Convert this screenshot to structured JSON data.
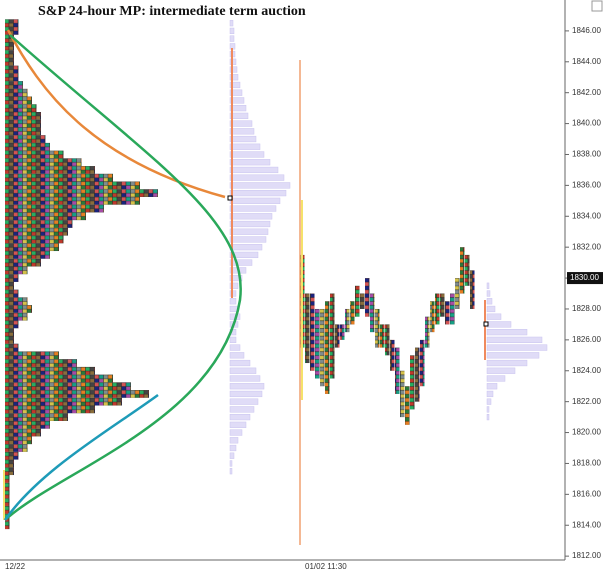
{
  "chart_data": {
    "type": "market-profile",
    "title": "S&P 24-hour MP: intermediate term auction",
    "ylim": [
      1811.75,
      1848
    ],
    "yticks": [
      {
        "value": 1812,
        "label": "1812.00"
      },
      {
        "value": 1814,
        "label": "1814.00"
      },
      {
        "value": 1816,
        "label": "1816.00"
      },
      {
        "value": 1818,
        "label": "1818.00"
      },
      {
        "value": 1820,
        "label": "1820.00"
      },
      {
        "value": 1822,
        "label": "1822.00"
      },
      {
        "value": 1824,
        "label": "1824.00"
      },
      {
        "value": 1826,
        "label": "1826.00"
      },
      {
        "value": 1828,
        "label": "1828.00"
      },
      {
        "value": 1830,
        "label": "1830.00"
      },
      {
        "value": 1832,
        "label": "1832.00"
      },
      {
        "value": 1834,
        "label": "1834.00"
      },
      {
        "value": 1836,
        "label": "1836.00"
      },
      {
        "value": 1838,
        "label": "1838.00"
      },
      {
        "value": 1840,
        "label": "1840.00"
      },
      {
        "value": 1842,
        "label": "1842.00"
      },
      {
        "value": 1844,
        "label": "1844.00"
      },
      {
        "value": 1846,
        "label": "1846.00"
      }
    ],
    "x_labels": [
      "12/22",
      "01/02 11:30"
    ],
    "last_price": {
      "value": 1830,
      "label": "1830.00"
    },
    "prices": [
      1846.5,
      1846,
      1845.5,
      1845,
      1844.5,
      1844,
      1843.5,
      1843,
      1842.5,
      1842,
      1841.5,
      1841,
      1840.5,
      1840,
      1839.5,
      1839,
      1838.5,
      1838,
      1837.5,
      1837,
      1836.5,
      1836,
      1835.5,
      1835,
      1834.5,
      1834,
      1833.5,
      1833,
      1832.5,
      1832,
      1831.5,
      1831,
      1830.5,
      1830,
      1829.5,
      1829,
      1828.5,
      1828,
      1827.5,
      1827,
      1826.5,
      1826,
      1825.5,
      1825,
      1824.5,
      1824,
      1823.5,
      1823,
      1822.5,
      1822,
      1821.5,
      1821,
      1820.5,
      1820,
      1819.5,
      1819,
      1818.5,
      1818,
      1817.5,
      1817,
      1816.5,
      1816,
      1815.5,
      1815,
      1814.5,
      1814
    ],
    "tpo_counts": [
      3,
      3,
      2,
      2,
      2,
      2,
      3,
      3,
      4,
      5,
      6,
      7,
      8,
      8,
      8,
      9,
      10,
      13,
      17,
      20,
      24,
      30,
      34,
      30,
      22,
      18,
      15,
      14,
      13,
      12,
      10,
      8,
      5,
      3,
      2,
      3,
      5,
      6,
      5,
      3,
      2,
      2,
      3,
      12,
      16,
      20,
      24,
      28,
      32,
      26,
      20,
      14,
      10,
      8,
      6,
      5,
      3,
      2,
      2,
      1,
      1,
      1,
      1,
      1,
      1,
      1
    ],
    "volume": [
      3,
      4,
      4,
      5,
      5,
      6,
      7,
      8,
      10,
      12,
      14,
      16,
      18,
      22,
      24,
      26,
      30,
      34,
      40,
      48,
      54,
      60,
      56,
      50,
      46,
      42,
      40,
      38,
      36,
      32,
      28,
      22,
      16,
      12,
      8,
      6,
      6,
      8,
      10,
      8,
      6,
      6,
      10,
      14,
      20,
      26,
      30,
      34,
      32,
      28,
      24,
      20,
      16,
      12,
      8,
      6,
      4,
      2,
      2,
      0,
      0,
      0,
      0,
      0,
      0,
      0
    ],
    "session_prices": [
      1829.5,
      1829,
      1828.5,
      1828,
      1827.5,
      1827,
      1826.5,
      1826,
      1825.5,
      1825,
      1824.5,
      1824,
      1823.5,
      1823,
      1822.5,
      1822,
      1821.5,
      1821
    ],
    "session_volume": [
      2,
      3,
      5,
      8,
      14,
      24,
      40,
      55,
      60,
      52,
      40,
      28,
      18,
      10,
      6,
      4,
      2,
      2
    ],
    "columns_high": [
      1831.5,
      1829,
      1829,
      1828,
      1828,
      1828.5,
      1829,
      1827,
      1827,
      1828,
      1828.5,
      1829.5,
      1829,
      1830,
      1829,
      1828,
      1827,
      1827,
      1826,
      1825.5,
      1824,
      1823,
      1825,
      1825.5,
      1826,
      1827.5,
      1828.5,
      1829,
      1829,
      1828.5,
      1829,
      1830,
      1832,
      1831.5,
      1830.5
    ],
    "columns_low": [
      1825.5,
      1824.5,
      1824,
      1823.5,
      1823,
      1822.5,
      1823.5,
      1825.5,
      1826,
      1826.5,
      1827,
      1827.5,
      1828,
      1827.5,
      1826.5,
      1825.5,
      1825.5,
      1825,
      1824,
      1822.5,
      1821,
      1820.5,
      1821.5,
      1822,
      1823,
      1825.5,
      1826.5,
      1827,
      1827.5,
      1827,
      1827,
      1828,
      1829,
      1829.5,
      1828
    ]
  }
}
